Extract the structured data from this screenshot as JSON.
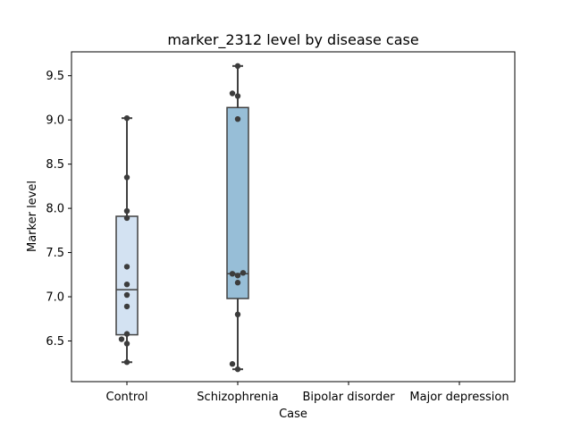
{
  "chart_data": {
    "type": "box",
    "title": "marker_2312 level by disease case",
    "xlabel": "Case",
    "ylabel": "Marker level",
    "categories": [
      "Control",
      "Schizophrenia",
      "Bipolar disorder",
      "Major depression"
    ],
    "ylim": [
      6.04,
      9.77
    ],
    "yticks": [
      6.5,
      7.0,
      7.5,
      8.0,
      8.5,
      9.0,
      9.5
    ],
    "ytick_labels": [
      "6.5",
      "7.0",
      "7.5",
      "8.0",
      "8.5",
      "9.0",
      "9.5"
    ],
    "grid": false,
    "boxes": [
      {
        "category": "Control",
        "whisker_low": 6.26,
        "q1": 6.57,
        "median": 7.08,
        "q3": 7.91,
        "whisker_high": 9.02,
        "color": "#d3e2f2"
      },
      {
        "category": "Schizophrenia",
        "whisker_low": 6.18,
        "q1": 6.98,
        "median": 7.26,
        "q3": 9.14,
        "whisker_high": 9.61,
        "color": "#97bed7"
      }
    ],
    "points": [
      {
        "category": "Control",
        "values": [
          9.02,
          8.35,
          7.97,
          7.89,
          7.34,
          7.14,
          7.02,
          6.89,
          6.58,
          6.52,
          6.47,
          6.26
        ],
        "offsets": [
          0,
          0,
          0,
          0,
          0,
          0,
          0,
          0,
          0,
          -0.5,
          0,
          0
        ]
      },
      {
        "category": "Schizophrenia",
        "values": [
          9.61,
          9.3,
          9.27,
          9.01,
          7.27,
          7.26,
          7.24,
          7.16,
          6.8,
          6.24,
          6.18
        ],
        "offsets": [
          0,
          -0.5,
          0,
          0,
          0.5,
          -0.5,
          0,
          0,
          0,
          -0.5,
          0
        ]
      }
    ],
    "colors": {
      "box_edge": "#404040",
      "point": "#3c3c3c",
      "axes": "#000000"
    }
  }
}
